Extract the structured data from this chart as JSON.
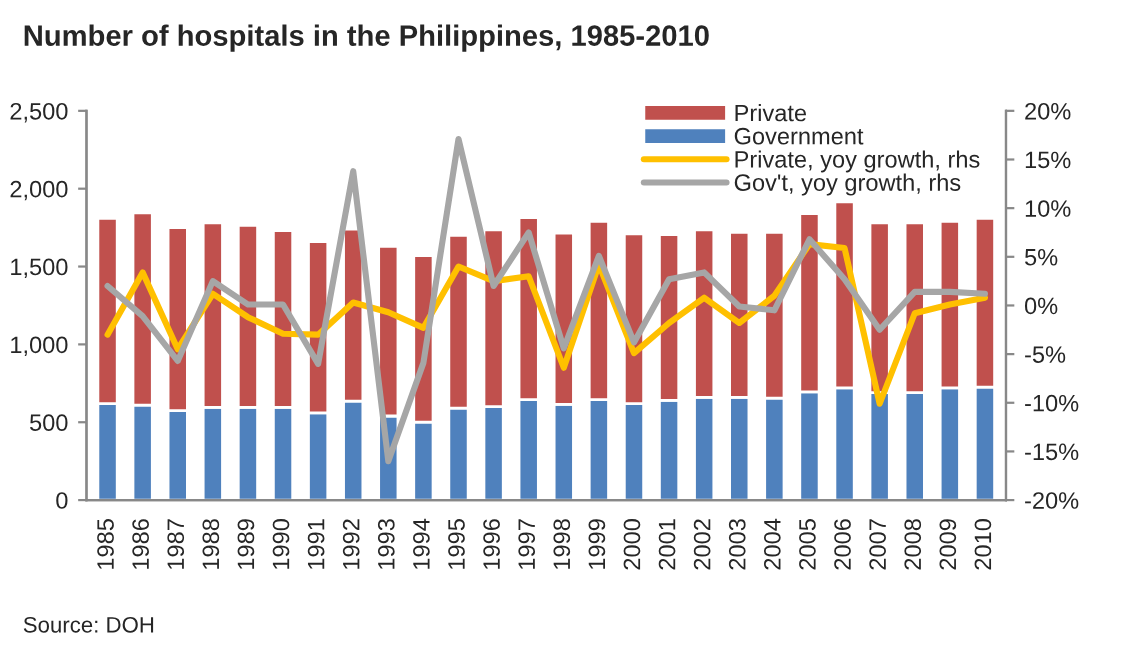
{
  "chart_data": {
    "type": "bar",
    "title": "Number of hospitals in the Philippines, 1985-2010",
    "stacked": true,
    "categories": [
      "1985",
      "1986",
      "1987",
      "1988",
      "1989",
      "1990",
      "1991",
      "1992",
      "1993",
      "1994",
      "1995",
      "1996",
      "1997",
      "1998",
      "1999",
      "2000",
      "2001",
      "2002",
      "2003",
      "2004",
      "2005",
      "2006",
      "2007",
      "2008",
      "2009",
      "2010"
    ],
    "series": [
      {
        "name": "Government",
        "color": "#4f81bd",
        "values": [
          620,
          610,
          575,
          595,
          595,
          595,
          560,
          635,
          540,
          500,
          590,
          600,
          645,
          615,
          645,
          620,
          640,
          660,
          660,
          655,
          695,
          720,
          690,
          690,
          720,
          725
        ]
      },
      {
        "name": "Private",
        "color": "#c0504d",
        "values": [
          1190,
          1235,
          1175,
          1185,
          1170,
          1135,
          1100,
          1105,
          1090,
          1070,
          1110,
          1135,
          1170,
          1100,
          1145,
          1090,
          1065,
          1075,
          1060,
          1065,
          1145,
          1195,
          1090,
          1090,
          1070,
          1085
        ]
      },
      {
        "name": "Private, yoy growth, rhs",
        "type": "line",
        "axis": "y2",
        "color": "#ffc000",
        "values": [
          -3.0,
          3.4,
          -4.5,
          1.2,
          -1.2,
          -2.9,
          -3.0,
          0.3,
          -0.7,
          -2.3,
          4.0,
          2.5,
          3.0,
          -6.4,
          4.2,
          -4.9,
          -1.8,
          0.8,
          -1.8,
          1.0,
          6.3,
          5.9,
          -10.1,
          -0.8,
          0.1,
          0.8
        ]
      },
      {
        "name": "Gov't, yoy growth, rhs",
        "type": "line",
        "axis": "y2",
        "color": "#a6a6a6",
        "values": [
          2.0,
          -1.1,
          -5.7,
          2.5,
          0.1,
          0.1,
          -6.0,
          13.8,
          -16.0,
          -5.9,
          17.1,
          2.0,
          7.5,
          -4.4,
          5.1,
          -3.8,
          2.7,
          3.4,
          -0.1,
          -0.5,
          6.8,
          2.7,
          -2.5,
          1.4,
          1.4,
          1.2
        ]
      }
    ],
    "ylim": [
      0,
      2500
    ],
    "yticks": [
      0,
      {
        "value": 500,
        "label": "500"
      },
      {
        "value": 1000,
        "label": "1,000"
      },
      {
        "value": 1500,
        "label": "1,500"
      },
      {
        "value": 2000,
        "label": "2,000"
      },
      {
        "value": 2500,
        "label": "2,500"
      }
    ],
    "y2lim": [
      -20,
      20
    ],
    "y2ticks": [
      {
        "value": -20,
        "label": "-20%"
      },
      {
        "value": -15,
        "label": "-15%"
      },
      {
        "value": -10,
        "label": "-10%"
      },
      {
        "value": -5,
        "label": "-5%"
      },
      {
        "value": 0,
        "label": "0%"
      },
      {
        "value": 5,
        "label": "5%"
      },
      {
        "value": 10,
        "label": "10%"
      },
      {
        "value": 15,
        "label": "15%"
      },
      {
        "value": 20,
        "label": "20%"
      }
    ],
    "grid": false,
    "legend": "top right",
    "line_style": "solid",
    "marker": "none",
    "annotations": [
      "Source: DOH"
    ]
  }
}
